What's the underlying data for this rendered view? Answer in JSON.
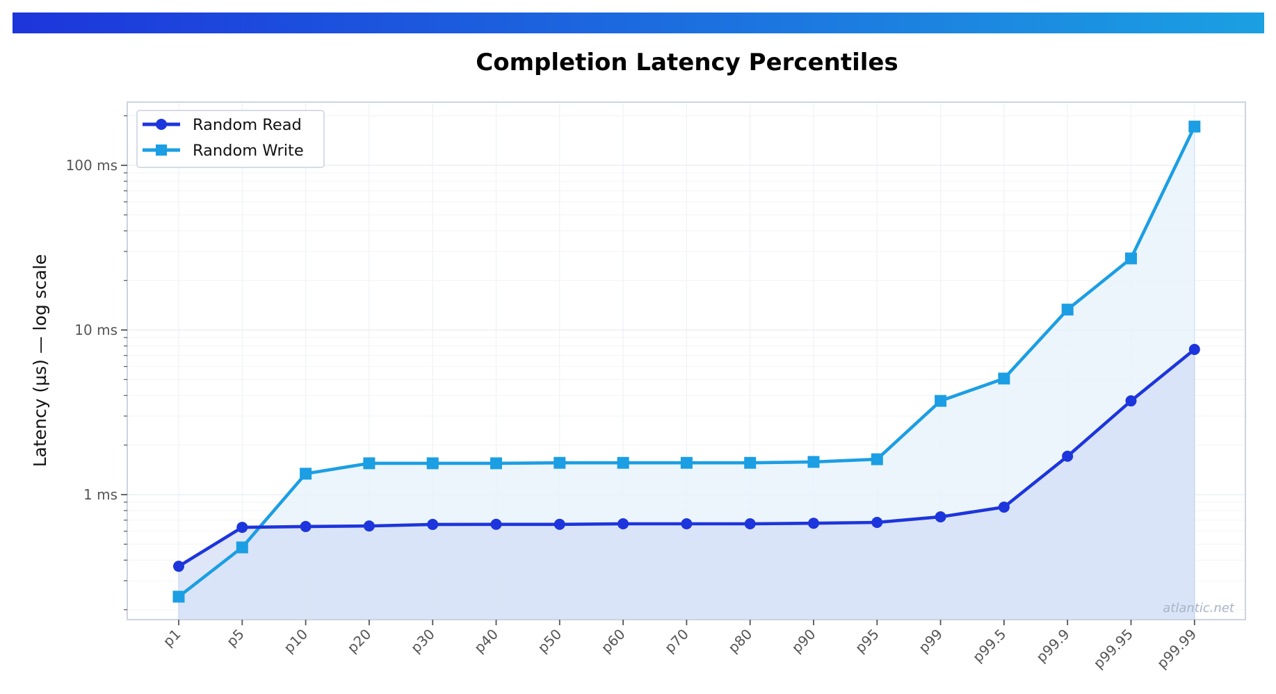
{
  "banner": {
    "gradient_start": "#1d35dc",
    "gradient_end": "#1ba0e2"
  },
  "watermark": "atlantic.net",
  "chart_data": {
    "type": "line",
    "title": "Completion Latency Percentiles",
    "xlabel": "",
    "ylabel": "Latency (µs) — log scale",
    "yscale": "log",
    "y_unit": "ms",
    "ylim": [
      0.176,
      230
    ],
    "yticks": [
      {
        "value": 1,
        "label": "1 ms"
      },
      {
        "value": 10,
        "label": "10 ms"
      },
      {
        "value": 100,
        "label": "100 ms"
      }
    ],
    "grid": true,
    "legend_position": "top-left",
    "categories": [
      "p1",
      "p5",
      "p10",
      "p20",
      "p30",
      "p40",
      "p50",
      "p60",
      "p70",
      "p80",
      "p90",
      "p95",
      "p99",
      "p99.5",
      "p99.9",
      "p99.95",
      "p99.99"
    ],
    "series": [
      {
        "name": "Random Read",
        "color": "#1d35dc",
        "fill": "#d6e0f6",
        "marker": "circle",
        "values": [
          0.367,
          0.633,
          0.64,
          0.645,
          0.659,
          0.66,
          0.66,
          0.665,
          0.665,
          0.665,
          0.67,
          0.678,
          0.733,
          0.84,
          1.71,
          3.71,
          7.62
        ]
      },
      {
        "name": "Random Write",
        "color": "#1b9ee3",
        "fill": "#e6f1fb",
        "marker": "square",
        "values": [
          0.24,
          0.478,
          1.34,
          1.55,
          1.55,
          1.55,
          1.56,
          1.56,
          1.56,
          1.56,
          1.58,
          1.64,
          3.71,
          5.07,
          13.3,
          27.2,
          172
        ]
      }
    ]
  }
}
